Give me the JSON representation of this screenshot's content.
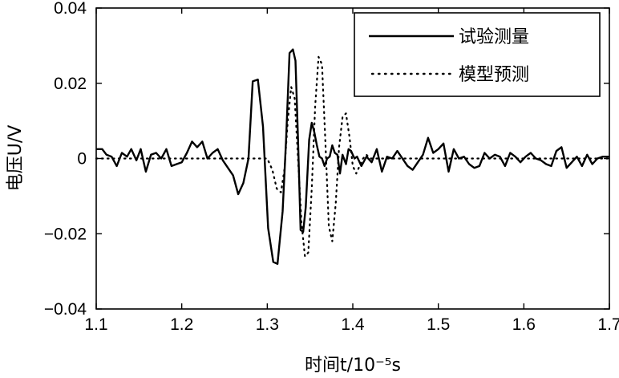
{
  "chart_data": {
    "type": "line",
    "xlabel": "时间t/10⁻⁵s",
    "ylabel": "电压U/V",
    "xlim": [
      1.1,
      1.7
    ],
    "ylim": [
      -0.04,
      0.04
    ],
    "xticks": [
      1.1,
      1.2,
      1.3,
      1.4,
      1.5,
      1.6,
      1.7
    ],
    "xtick_labels": [
      "1.1",
      "1.2",
      "1.3",
      "1.4",
      "1.5",
      "1.6",
      "1.7"
    ],
    "yticks": [
      0.04,
      0.02,
      0,
      -0.02,
      -0.04
    ],
    "ytick_labels": [
      "0.04",
      "0.02",
      "0",
      "−0.02",
      "−0.04"
    ],
    "grid": false,
    "legend_position": "top-right",
    "series": [
      {
        "name": "试验测量",
        "style": "solid",
        "x": [
          1.1,
          1.107,
          1.112,
          1.118,
          1.124,
          1.13,
          1.136,
          1.141,
          1.147,
          1.152,
          1.158,
          1.164,
          1.17,
          1.176,
          1.182,
          1.188,
          1.194,
          1.2,
          1.206,
          1.212,
          1.218,
          1.224,
          1.23,
          1.236,
          1.242,
          1.248,
          1.254,
          1.26,
          1.266,
          1.272,
          1.278,
          1.283,
          1.289,
          1.295,
          1.301,
          1.307,
          1.312,
          1.318,
          1.322,
          1.326,
          1.33,
          1.333,
          1.336,
          1.339,
          1.342,
          1.345,
          1.349,
          1.352,
          1.355,
          1.358,
          1.361,
          1.364,
          1.367,
          1.37,
          1.373,
          1.376,
          1.379,
          1.382,
          1.385,
          1.388,
          1.392,
          1.395,
          1.398,
          1.402,
          1.405,
          1.41,
          1.416,
          1.422,
          1.428,
          1.434,
          1.44,
          1.446,
          1.452,
          1.458,
          1.464,
          1.47,
          1.476,
          1.482,
          1.488,
          1.494,
          1.5,
          1.506,
          1.512,
          1.518,
          1.524,
          1.53,
          1.536,
          1.542,
          1.548,
          1.554,
          1.56,
          1.566,
          1.572,
          1.578,
          1.584,
          1.59,
          1.596,
          1.602,
          1.608,
          1.614,
          1.62,
          1.626,
          1.632,
          1.638,
          1.644,
          1.65,
          1.656,
          1.662,
          1.668,
          1.674,
          1.68,
          1.686,
          1.692,
          1.7
        ],
        "y": [
          0.0025,
          0.0025,
          0.001,
          0.0005,
          -0.002,
          0.0015,
          0.0005,
          0.0025,
          -0.0005,
          0.0025,
          -0.0035,
          0.001,
          0.0015,
          0.0,
          0.0025,
          -0.002,
          -0.0015,
          -0.001,
          0.0015,
          0.0045,
          0.003,
          0.0045,
          0.0,
          0.0015,
          0.0025,
          -0.0005,
          -0.0025,
          -0.0045,
          -0.0095,
          -0.0065,
          0.0,
          0.0205,
          0.021,
          0.0085,
          -0.0185,
          -0.0275,
          -0.028,
          -0.014,
          0.005,
          0.028,
          0.029,
          0.026,
          0.005,
          -0.019,
          -0.0195,
          -0.013,
          0.005,
          0.0095,
          0.007,
          0.0035,
          0.0005,
          0.0,
          -0.002,
          0.0,
          0.0005,
          0.0035,
          0.0015,
          0.001,
          -0.004,
          0.001,
          -0.0015,
          0.0025,
          0.002,
          0.0,
          0.0005,
          -0.002,
          0.0005,
          -0.001,
          0.0025,
          -0.0035,
          0.0005,
          0.0,
          0.002,
          0.0,
          -0.002,
          -0.003,
          -0.001,
          0.001,
          0.0055,
          0.0015,
          0.0025,
          0.004,
          -0.0035,
          0.0025,
          0.0,
          0.0005,
          -0.0015,
          -0.0025,
          -0.002,
          0.0015,
          0.0,
          0.001,
          0.0005,
          -0.002,
          0.0015,
          0.0005,
          -0.001,
          0.0005,
          0.0015,
          0.0,
          -0.0005,
          -0.0015,
          -0.002,
          0.002,
          0.003,
          -0.0025,
          -0.001,
          0.0005,
          -0.002,
          0.001,
          -0.0015,
          0.0,
          0.0005,
          0.0005
        ],
        "note_y_alignment": "x and y listed pairwise"
      },
      {
        "name": "模型预测",
        "style": "dotted",
        "x": [
          1.1,
          1.3,
          1.306,
          1.311,
          1.316,
          1.32,
          1.324,
          1.328,
          1.332,
          1.336,
          1.34,
          1.344,
          1.348,
          1.352,
          1.356,
          1.36,
          1.364,
          1.368,
          1.372,
          1.376,
          1.38,
          1.384,
          1.388,
          1.392,
          1.396,
          1.4,
          1.404,
          1.408,
          1.412,
          1.416,
          1.42,
          1.426,
          1.432,
          1.44,
          1.7
        ],
        "y": [
          0,
          0,
          -0.003,
          -0.008,
          -0.009,
          -0.003,
          0.01,
          0.019,
          0.016,
          0.0,
          -0.017,
          -0.026,
          -0.025,
          -0.008,
          0.014,
          0.027,
          0.025,
          0.004,
          -0.018,
          -0.022,
          -0.012,
          0.003,
          0.011,
          0.012,
          0.006,
          -0.002,
          -0.004,
          -0.002,
          0.0,
          0.001,
          0.0,
          0.0,
          0.0,
          0.0,
          0
        ]
      }
    ]
  }
}
